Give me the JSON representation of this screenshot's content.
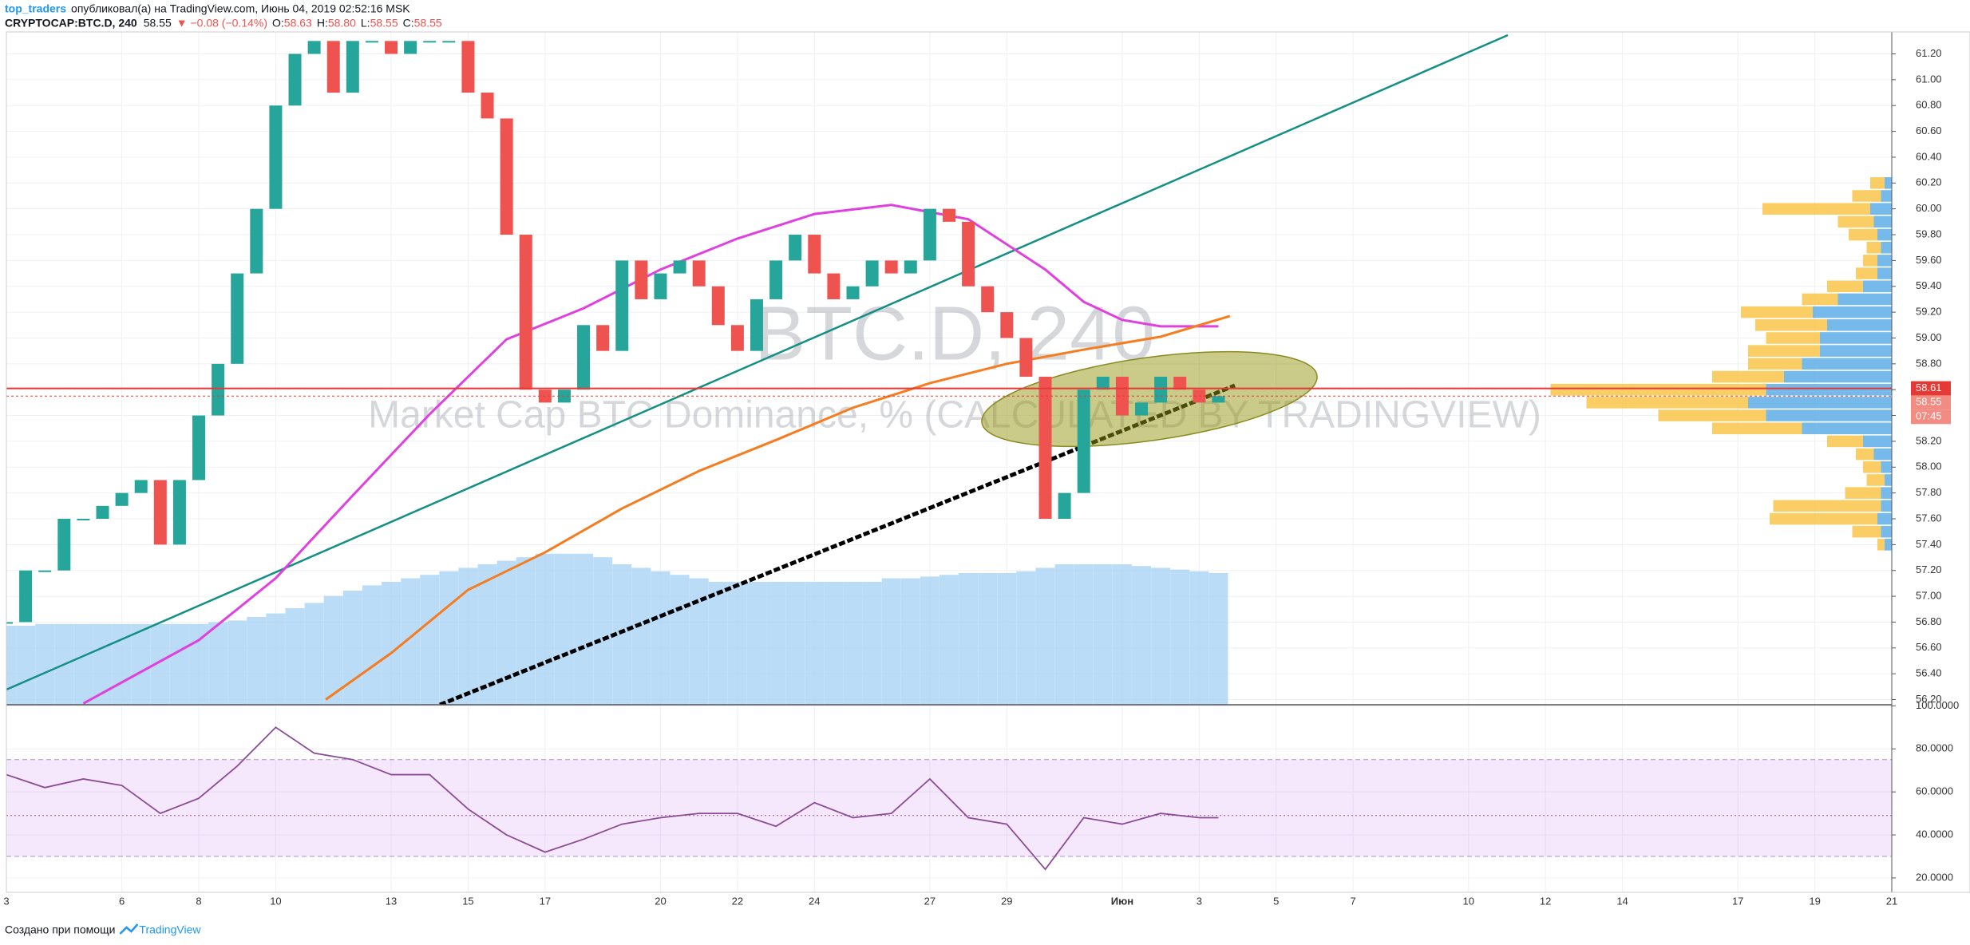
{
  "header": {
    "author": "top_traders",
    "published": "опубликовал(а) на TradingView.com, Июнь 04, 2019 02:52:16 MSK",
    "symbol": "CRYPTOCAP:BTC.D, 240",
    "last": "58.55",
    "change": "▼ −0.08 (−0.14%)",
    "ohlc": [
      {
        "key": "O:",
        "value": "58.63"
      },
      {
        "key": "H:",
        "value": "58.80"
      },
      {
        "key": "L:",
        "value": "58.55"
      },
      {
        "key": "C:",
        "value": "58.55"
      }
    ]
  },
  "footer": {
    "text": "Создано при помощи",
    "brand": "TradingView"
  },
  "chart_data": [
    {
      "type": "candlestick",
      "watermark": "BTC.D, 240",
      "subtitle": "Market Cap BTC Dominance, % (CALCULATED BY TRADINGVIEW)",
      "xlim": [
        0,
        49
      ],
      "ylim": [
        56.16,
        61.37
      ],
      "xticks": [
        {
          "value": 0,
          "label": "3"
        },
        {
          "value": 3,
          "label": "6"
        },
        {
          "value": 5,
          "label": "8"
        },
        {
          "value": 7,
          "label": "10"
        },
        {
          "value": 10,
          "label": "13"
        },
        {
          "value": 12,
          "label": "15"
        },
        {
          "value": 14,
          "label": "17"
        },
        {
          "value": 17,
          "label": "20"
        },
        {
          "value": 19,
          "label": "22"
        },
        {
          "value": 21,
          "label": "24"
        },
        {
          "value": 24,
          "label": "27"
        },
        {
          "value": 26,
          "label": "29"
        },
        {
          "value": 29,
          "label": "Июн"
        },
        {
          "value": 31,
          "label": "3"
        },
        {
          "value": 33,
          "label": "5"
        },
        {
          "value": 35,
          "label": "7"
        },
        {
          "value": 38,
          "label": "10"
        },
        {
          "value": 40,
          "label": "12"
        },
        {
          "value": 42,
          "label": "14"
        },
        {
          "value": 45,
          "label": "17"
        },
        {
          "value": 47,
          "label": "19"
        },
        {
          "value": 49,
          "label": "21"
        }
      ],
      "yticks": [
        {
          "value": 56.2,
          "label": "56.20"
        },
        {
          "value": 56.4,
          "label": "56.40"
        },
        {
          "value": 56.6,
          "label": "56.60"
        },
        {
          "value": 56.8,
          "label": "56.80"
        },
        {
          "value": 57,
          "label": "57.00"
        },
        {
          "value": 57.2,
          "label": "57.20"
        },
        {
          "value": 57.4,
          "label": "57.40"
        },
        {
          "value": 57.6,
          "label": "57.60"
        },
        {
          "value": 57.8,
          "label": "57.80"
        },
        {
          "value": 58,
          "label": "58.00"
        },
        {
          "value": 58.2,
          "label": "58.20"
        },
        {
          "value": 58.4,
          "label": "58.40"
        },
        {
          "value": 58.6,
          "label": "58.60"
        },
        {
          "value": 58.8,
          "label": "58.80"
        },
        {
          "value": 59,
          "label": "59.00"
        },
        {
          "value": 59.2,
          "label": "59.20"
        },
        {
          "value": 59.4,
          "label": "59.40"
        },
        {
          "value": 59.6,
          "label": "59.60"
        },
        {
          "value": 59.8,
          "label": "59.80"
        },
        {
          "value": 60,
          "label": "60.00"
        },
        {
          "value": 60.2,
          "label": "60.20"
        },
        {
          "value": 60.4,
          "label": "60.40"
        },
        {
          "value": 60.6,
          "label": "60.60"
        },
        {
          "value": 60.8,
          "label": "60.80"
        },
        {
          "value": 61,
          "label": "61.00"
        },
        {
          "value": 61.2,
          "label": "61.20"
        }
      ],
      "grid": true,
      "up_color": "#26a69a",
      "down_color": "#ef5350",
      "price": {
        "x": [
          0,
          0.5,
          1,
          1.5,
          2,
          2.5,
          3,
          3.5,
          4,
          4.5,
          5,
          5.5,
          6,
          6.5,
          7,
          7.5,
          8,
          8.5,
          9,
          9.5,
          10,
          10.5,
          11,
          11.5,
          12,
          12.5,
          13,
          13.5,
          14,
          14.5,
          15,
          15.5,
          16,
          16.5,
          17,
          17.5,
          18,
          18.5,
          19,
          19.5,
          20,
          20.5,
          21,
          21.5,
          22,
          22.5,
          23,
          23.5,
          24,
          24.5,
          25,
          25.5,
          26,
          26.5,
          27,
          27.5,
          28,
          28.5,
          29,
          29.5,
          30,
          30.5,
          31,
          31.5
        ],
        "values": [
          56.8,
          57.2,
          57.2,
          57.6,
          57.6,
          57.7,
          57.8,
          57.9,
          57.4,
          57.9,
          58.4,
          58.8,
          59.5,
          60.0,
          60.8,
          61.2,
          61.3,
          60.9,
          61.3,
          61.3,
          61.2,
          61.3,
          61.3,
          61.3,
          60.9,
          60.7,
          59.8,
          58.6,
          58.5,
          58.6,
          59.1,
          58.9,
          59.6,
          59.3,
          59.5,
          59.6,
          59.4,
          59.1,
          58.9,
          59.3,
          59.6,
          59.8,
          59.5,
          59.3,
          59.4,
          59.6,
          59.5,
          59.6,
          60.0,
          59.9,
          59.4,
          59.2,
          59.0,
          58.7,
          57.6,
          57.8,
          58.6,
          58.7,
          58.4,
          58.5,
          58.7,
          58.6,
          58.5,
          58.55
        ],
        "volume": [
          45,
          45,
          46,
          46,
          46,
          46,
          46,
          46,
          46,
          46,
          46,
          47,
          48,
          50,
          52,
          55,
          58,
          62,
          65,
          68,
          70,
          72,
          74,
          76,
          78,
          80,
          82,
          84,
          86,
          86,
          86,
          84,
          80,
          78,
          76,
          74,
          72,
          70,
          70,
          70,
          70,
          70,
          70,
          70,
          70,
          70,
          72,
          72,
          73,
          74,
          75,
          75,
          75,
          76,
          78,
          80,
          80,
          80,
          80,
          79,
          78,
          77,
          76,
          75
        ],
        "volume_color": "#a9d3f5",
        "vlim": [
          0,
          100
        ]
      },
      "series": [
        {
          "color": "#e040e0",
          "x": [
            2,
            5,
            7,
            9,
            11,
            13,
            15,
            17,
            19,
            21,
            23,
            25,
            27,
            28,
            29,
            30,
            31.5
          ],
          "values": [
            56.17,
            56.66,
            57.14,
            57.78,
            58.41,
            58.99,
            59.23,
            59.53,
            59.77,
            59.96,
            60.03,
            59.92,
            59.53,
            59.28,
            59.14,
            59.09,
            59.09
          ]
        },
        {
          "color": "#f57c1f",
          "x": [
            8.3,
            10,
            12,
            14,
            16,
            18,
            20,
            22,
            24,
            26,
            28,
            30,
            31.8
          ],
          "values": [
            56.2,
            56.56,
            57.05,
            57.34,
            57.68,
            57.97,
            58.21,
            58.46,
            58.65,
            58.8,
            58.91,
            59.01,
            59.17
          ]
        }
      ],
      "price_labels": [
        {
          "value": 58.61,
          "label": "58.61"
        },
        {
          "value": 58.55,
          "label": "58.55"
        }
      ],
      "countdown": "07:45",
      "profile": {
        "levels": [
          57.4,
          57.5,
          57.6,
          57.7,
          57.8,
          57.9,
          58.0,
          58.1,
          58.2,
          58.3,
          58.4,
          58.5,
          58.6,
          58.7,
          58.8,
          58.9,
          59.0,
          59.1,
          59.2,
          59.3,
          59.4,
          59.5,
          59.6,
          59.7,
          59.8,
          59.9,
          60.0,
          60.1,
          60.2
        ],
        "plim": [
          0,
          100
        ],
        "series": [
          {
            "color": "#5eaee8",
            "values": [
              2,
              3,
              4,
              3,
              3,
              2,
              3,
              5,
              8,
              25,
              35,
              40,
              35,
              30,
              25,
              20,
              20,
              18,
              22,
              15,
              8,
              4,
              4,
              3,
              4,
              5,
              6,
              3,
              2
            ]
          },
          {
            "color": "#f9c54a",
            "values": [
              2,
              8,
              30,
              30,
              10,
              5,
              5,
              5,
              10,
              25,
              30,
              45,
              60,
              20,
              15,
              20,
              15,
              20,
              20,
              10,
              10,
              6,
              4,
              4,
              8,
              10,
              30,
              8,
              4
            ]
          }
        ]
      }
    },
    {
      "type": "line",
      "ylim": [
        13.3,
        100.5
      ],
      "yticks": [
        {
          "value": 20,
          "label": "20.0000"
        },
        {
          "value": 40,
          "label": "40.0000"
        },
        {
          "value": 60,
          "label": "60.0000"
        },
        {
          "value": 80,
          "label": "80.0000"
        },
        {
          "value": 100,
          "label": "100.0000"
        }
      ],
      "band": [
        30,
        75
      ],
      "midline": 49,
      "series": [
        {
          "color": "#8a4c96",
          "x": [
            0,
            1,
            2,
            3,
            4,
            5,
            6,
            7,
            8,
            9,
            10,
            11,
            12,
            13,
            14,
            15,
            16,
            17,
            18,
            19,
            20,
            21,
            22,
            23,
            24,
            25,
            26,
            27,
            28,
            29,
            30,
            31,
            31.5
          ],
          "values": [
            68,
            62,
            66,
            63,
            50,
            57,
            72,
            90,
            78,
            75,
            68,
            68,
            52,
            40,
            32,
            38,
            45,
            48,
            50,
            50,
            44,
            55,
            48,
            50,
            66,
            48,
            45,
            24,
            48,
            45,
            50,
            48,
            48
          ]
        }
      ]
    }
  ]
}
